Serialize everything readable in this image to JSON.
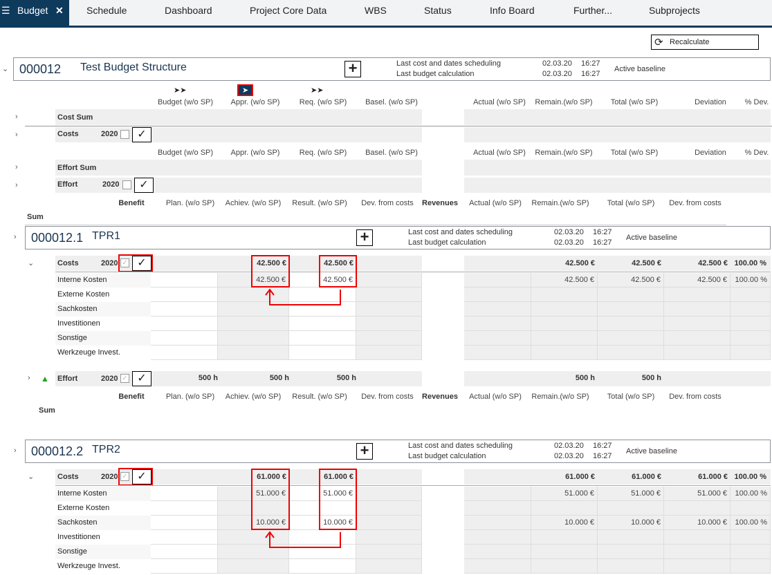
{
  "tabs": [
    {
      "label": "Budget",
      "active": true
    },
    {
      "label": "Schedule"
    },
    {
      "label": "Dashboard"
    },
    {
      "label": "Project Core Data"
    },
    {
      "label": "WBS"
    },
    {
      "label": "Status"
    },
    {
      "label": "Info Board"
    },
    {
      "label": "Further..."
    },
    {
      "label": "Subprojects"
    }
  ],
  "recalculate_label": "Recalculate",
  "meta_labels": {
    "sched": "Last cost and dates scheduling",
    "budget": "Last budget calculation",
    "baseline": "Active baseline"
  },
  "colors": {
    "accent": "#0e3a5c",
    "annotation": "#e00000",
    "trend_up": "#1aa31a"
  },
  "cost_headers": [
    "Budget (w/o SP)",
    "Appr. (w/o SP)",
    "Req. (w/o SP)",
    "Basel. (w/o SP)",
    "Actual (w/o SP)",
    "Remain.(w/o SP)",
    "Total (w/o SP)",
    "Deviation",
    "% Dev."
  ],
  "benefit_headers": [
    "Benefit",
    "Plan. (w/o SP)",
    "Achiev. (w/o SP)",
    "Result. (w/o SP)",
    "Dev. from costs",
    "Revenues",
    "Actual (w/o SP)",
    "Remain.(w/o SP)",
    "Total (w/o SP)",
    "Dev. from costs"
  ],
  "sum_label": "Sum",
  "root": {
    "id": "000012",
    "title": "Test Budget Structure",
    "sched_date": "02.03.20",
    "sched_time": "16:27",
    "budget_date": "02.03.20",
    "budget_time": "16:27",
    "rows": {
      "cost_sum": "Cost Sum",
      "costs": "Costs",
      "effort_sum": "Effort Sum",
      "effort": "Effort",
      "year": "2020"
    }
  },
  "projects": [
    {
      "id": "000012.1",
      "title": "TPR1",
      "sched_date": "02.03.20",
      "sched_time": "16:27",
      "budget_date": "02.03.20",
      "budget_time": "16:27",
      "costs": {
        "label": "Costs",
        "year": "2020",
        "values": [
          "",
          "42.500 €",
          "42.500 €",
          "",
          "",
          "42.500 €",
          "42.500 €",
          "42.500 €",
          "100.00 %"
        ]
      },
      "subrows": [
        {
          "label": "Interne Kosten",
          "values": [
            "",
            "42.500 €",
            "42.500 €",
            "",
            "",
            "42.500 €",
            "42.500 €",
            "42.500 €",
            "100.00 %"
          ]
        },
        {
          "label": "Externe Kosten",
          "values": [
            "",
            "",
            "",
            "",
            "",
            "",
            "",
            "",
            ""
          ]
        },
        {
          "label": "Sachkosten",
          "values": [
            "",
            "",
            "",
            "",
            "",
            "",
            "",
            "",
            ""
          ]
        },
        {
          "label": "Investitionen",
          "values": [
            "",
            "",
            "",
            "",
            "",
            "",
            "",
            "",
            ""
          ]
        },
        {
          "label": "Sonstige",
          "values": [
            "",
            "",
            "",
            "",
            "",
            "",
            "",
            "",
            ""
          ]
        },
        {
          "label": "Werkzeuge Invest.",
          "values": [
            "",
            "",
            "",
            "",
            "",
            "",
            "",
            "",
            ""
          ]
        }
      ],
      "effort": {
        "label": "Effort",
        "year": "2020",
        "values": [
          "500 h",
          "500 h",
          "500 h",
          "",
          "",
          "500 h",
          "500 h",
          "",
          ""
        ]
      }
    },
    {
      "id": "000012.2",
      "title": "TPR2",
      "sched_date": "02.03.20",
      "sched_time": "16:27",
      "budget_date": "02.03.20",
      "budget_time": "16:27",
      "costs": {
        "label": "Costs",
        "year": "2020",
        "values": [
          "",
          "61.000 €",
          "61.000 €",
          "",
          "",
          "61.000 €",
          "61.000 €",
          "61.000 €",
          "100.00 %"
        ]
      },
      "subrows": [
        {
          "label": "Interne Kosten",
          "values": [
            "",
            "51.000 €",
            "51.000 €",
            "",
            "",
            "51.000 €",
            "51.000 €",
            "51.000 €",
            "100.00 %"
          ]
        },
        {
          "label": "Externe Kosten",
          "values": [
            "",
            "",
            "",
            "",
            "",
            "",
            "",
            "",
            ""
          ]
        },
        {
          "label": "Sachkosten",
          "values": [
            "",
            "10.000 €",
            "10.000 €",
            "",
            "",
            "10.000 €",
            "10.000 €",
            "10.000 €",
            "100.00 %"
          ]
        },
        {
          "label": "Investitionen",
          "values": [
            "",
            "",
            "",
            "",
            "",
            "",
            "",
            "",
            ""
          ]
        },
        {
          "label": "Sonstige",
          "values": [
            "",
            "",
            "",
            "",
            "",
            "",
            "",
            "",
            ""
          ]
        },
        {
          "label": "Werkzeuge Invest.",
          "values": [
            "",
            "",
            "",
            "",
            "",
            "",
            "",
            "",
            ""
          ]
        }
      ]
    }
  ]
}
